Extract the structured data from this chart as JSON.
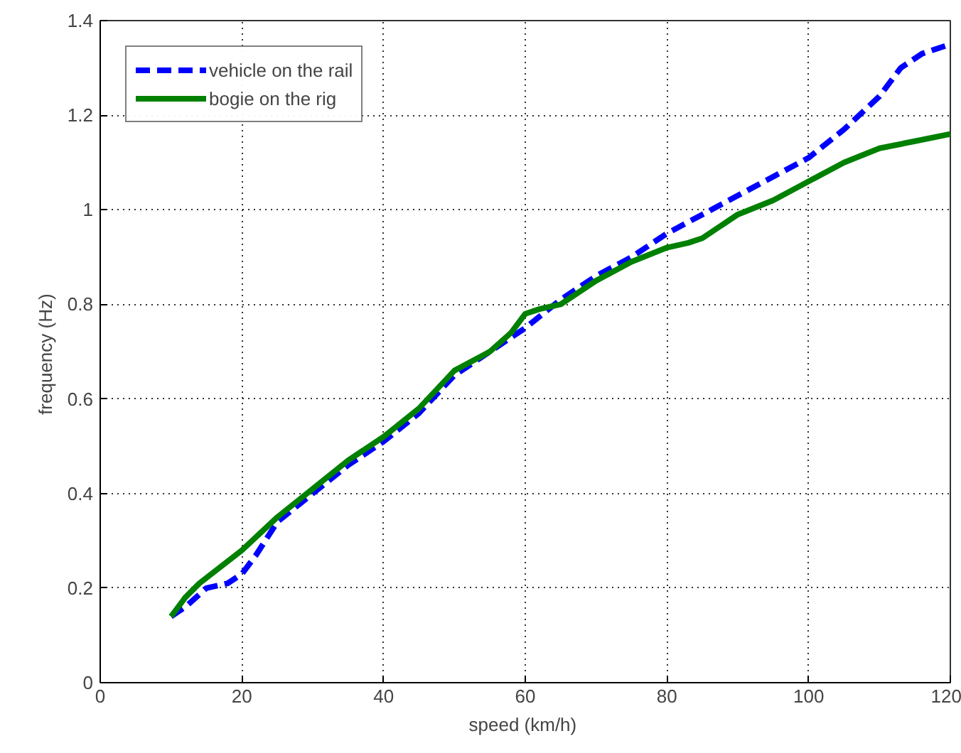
{
  "chart_data": {
    "type": "line",
    "xlabel": "speed  (km/h)",
    "ylabel": "frequency  (Hz)",
    "xlim": [
      0,
      120
    ],
    "ylim": [
      0,
      1.4
    ],
    "xticks": [
      0,
      20,
      40,
      60,
      80,
      100,
      120
    ],
    "yticks": [
      0,
      0.2,
      0.4,
      0.6,
      0.8,
      1,
      1.2,
      1.4
    ],
    "grid": true,
    "legend": "top left",
    "series": [
      {
        "name": "vehicle on the rail",
        "color": "#0000ff",
        "line_style": "dashed",
        "x": [
          10,
          12,
          15,
          18,
          20,
          22,
          25,
          30,
          35,
          40,
          45,
          50,
          55,
          60,
          65,
          70,
          75,
          80,
          85,
          90,
          95,
          100,
          105,
          110,
          113,
          116,
          120
        ],
        "values": [
          0.14,
          0.16,
          0.2,
          0.21,
          0.23,
          0.27,
          0.34,
          0.4,
          0.46,
          0.51,
          0.57,
          0.65,
          0.7,
          0.75,
          0.81,
          0.86,
          0.9,
          0.95,
          0.99,
          1.03,
          1.07,
          1.11,
          1.17,
          1.24,
          1.3,
          1.33,
          1.35
        ]
      },
      {
        "name": "bogie on the rig",
        "color": "#008000",
        "line_style": "solid",
        "x": [
          10,
          12,
          14,
          20,
          25,
          30,
          35,
          40,
          45,
          50,
          55,
          58,
          60,
          62,
          65,
          70,
          75,
          80,
          83,
          85,
          90,
          95,
          100,
          105,
          110,
          115,
          120
        ],
        "values": [
          0.14,
          0.18,
          0.21,
          0.28,
          0.35,
          0.41,
          0.47,
          0.52,
          0.58,
          0.66,
          0.7,
          0.74,
          0.78,
          0.79,
          0.8,
          0.85,
          0.89,
          0.92,
          0.93,
          0.94,
          0.99,
          1.02,
          1.06,
          1.1,
          1.13,
          1.145,
          1.16
        ]
      }
    ]
  }
}
